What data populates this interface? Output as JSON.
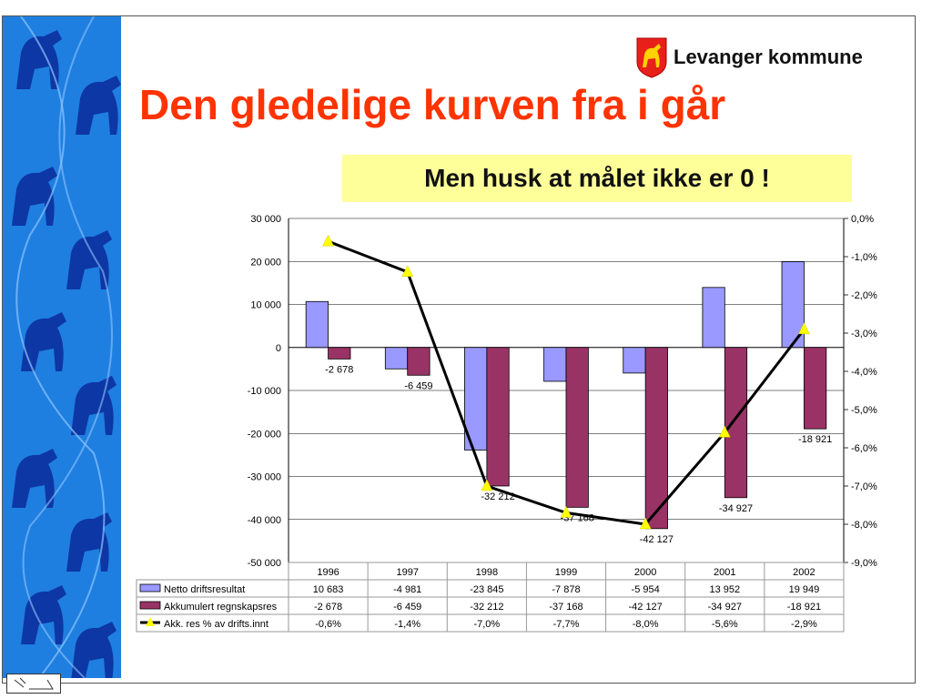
{
  "slide": {
    "title": "Den gledelige kurven fra i går",
    "note": "Men husk at målet ikke er 0 !",
    "logo_text": "Levanger kommune"
  },
  "colors": {
    "title": "#ff3300",
    "note_bg": "#ffff99",
    "bar1": "#9999ff",
    "bar2": "#993366",
    "line": "#000000",
    "marker": "#ffff00",
    "sidebar": "#1e7fe0"
  },
  "chart_data": {
    "type": "bar",
    "categories": [
      "1996",
      "1997",
      "1998",
      "1999",
      "2000",
      "2001",
      "2002"
    ],
    "ylim": [
      -50000,
      30000
    ],
    "ylim_right": [
      -9.0,
      0.0
    ],
    "yticks_left": [
      "30 000",
      "20 000",
      "10 000",
      "0",
      "-10 000",
      "-20 000",
      "-30 000",
      "-40 000",
      "-50 000"
    ],
    "yticks_right": [
      "0,0%",
      "-1,0%",
      "-2,0%",
      "-3,0%",
      "-4,0%",
      "-5,0%",
      "-6,0%",
      "-7,0%",
      "-8,0%",
      "-9,0%"
    ],
    "grid": true,
    "legend_position": "data-table",
    "series": [
      {
        "name": "Netto driftsresultat",
        "kind": "bar",
        "values": [
          10683,
          -4981,
          -23845,
          -7878,
          -5954,
          13952,
          19949
        ],
        "table_labels": [
          "10 683",
          "-4 981",
          "-23 845",
          "-7 878",
          "-5 954",
          "13 952",
          "19 949"
        ]
      },
      {
        "name": "Akkumulert regnskapsres",
        "kind": "bar",
        "values": [
          -2678,
          -6459,
          -32212,
          -37168,
          -42127,
          -34927,
          -18921
        ],
        "table_labels": [
          "-2 678",
          "-6 459",
          "-32 212",
          "-37 168",
          "-42 127",
          "-34 927",
          "-18 921"
        ],
        "data_labels": [
          "-2 678",
          "-6 459",
          "-32 212",
          "-37 168",
          "-42 127",
          "-34 927",
          "-18 921"
        ]
      },
      {
        "name": "Akk. res % av drifts.innt",
        "kind": "line",
        "axis": "right",
        "values": [
          -0.6,
          -1.4,
          -7.0,
          -7.7,
          -8.0,
          -5.6,
          -2.9
        ],
        "table_labels": [
          "-0,6%",
          "-1,4%",
          "-7,0%",
          "-7,7%",
          "-8,0%",
          "-5,6%",
          "-2,9%"
        ]
      }
    ]
  }
}
